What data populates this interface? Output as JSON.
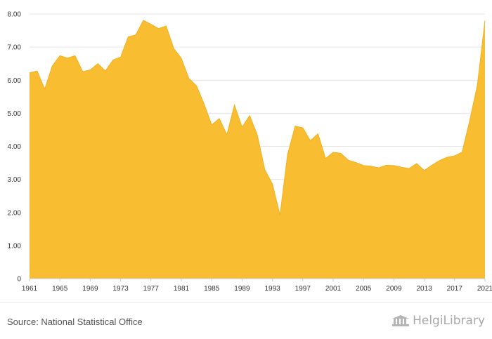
{
  "chart_data": {
    "type": "area",
    "title": "",
    "xlabel": "",
    "ylabel": "",
    "x": [
      1961,
      1962,
      1963,
      1964,
      1965,
      1966,
      1967,
      1968,
      1969,
      1970,
      1971,
      1972,
      1973,
      1974,
      1975,
      1976,
      1977,
      1978,
      1979,
      1980,
      1981,
      1982,
      1983,
      1984,
      1985,
      1986,
      1987,
      1988,
      1989,
      1990,
      1991,
      1992,
      1993,
      1994,
      1995,
      1996,
      1997,
      1998,
      1999,
      2000,
      2001,
      2002,
      2003,
      2004,
      2005,
      2006,
      2007,
      2008,
      2009,
      2010,
      2011,
      2012,
      2013,
      2014,
      2015,
      2016,
      2017,
      2018,
      2019,
      2020,
      2021
    ],
    "series": [
      {
        "values": [
          6.22,
          6.28,
          5.73,
          6.43,
          6.74,
          6.67,
          6.74,
          6.26,
          6.31,
          6.5,
          6.28,
          6.61,
          6.7,
          7.31,
          7.37,
          7.81,
          7.69,
          7.56,
          7.64,
          6.96,
          6.66,
          6.05,
          5.83,
          5.28,
          4.65,
          4.84,
          4.35,
          5.25,
          4.58,
          4.93,
          4.35,
          3.29,
          2.86,
          1.92,
          3.76,
          4.61,
          4.56,
          4.17,
          4.38,
          3.63,
          3.82,
          3.79,
          3.58,
          3.51,
          3.42,
          3.4,
          3.35,
          3.43,
          3.42,
          3.37,
          3.33,
          3.48,
          3.27,
          3.43,
          3.57,
          3.67,
          3.71,
          3.83,
          4.79,
          5.85,
          7.8
        ],
        "color": "#f9bd32"
      }
    ],
    "ylim": [
      0,
      8
    ],
    "y_ticks": [
      0,
      1,
      2,
      3,
      4,
      5,
      6,
      7,
      8
    ],
    "y_tick_labels": [
      "0",
      "1.00",
      "2.00",
      "3.00",
      "4.00",
      "5.00",
      "6.00",
      "7.00",
      "8.00"
    ],
    "x_ticks": [
      1961,
      1965,
      1969,
      1973,
      1977,
      1981,
      1985,
      1989,
      1993,
      1997,
      2001,
      2005,
      2009,
      2013,
      2017,
      2021
    ],
    "x_tick_labels": [
      "1961",
      "1965",
      "1969",
      "1973",
      "1977",
      "1981",
      "1985",
      "1989",
      "1993",
      "1997",
      "2001",
      "2005",
      "2009",
      "2013",
      "2017",
      "2021"
    ],
    "grid": true,
    "legend": "none",
    "fill_color": "#f9bd32",
    "stroke_color": "#f2b01e",
    "grid_color": "#e6e6e6"
  },
  "footer": {
    "source": "Source: National Statistical Office",
    "brand_main": "HelgiLibrary",
    "brand_icon": "library-logo-icon"
  }
}
